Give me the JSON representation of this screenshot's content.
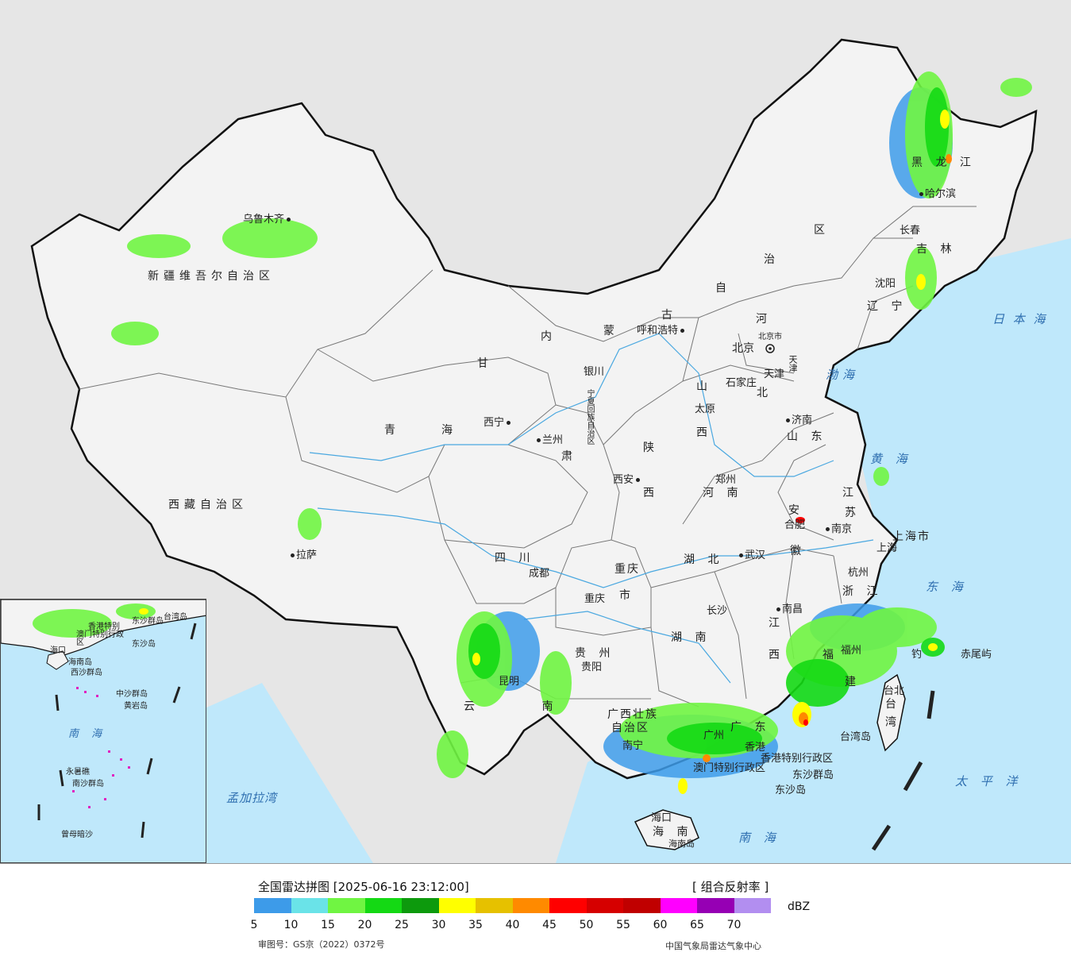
{
  "map": {
    "provinces": [
      {
        "key": "xinjiang",
        "text": "新疆维吾尔自治区"
      },
      {
        "key": "xizang",
        "text": "西藏自治区"
      },
      {
        "key": "qinghai1",
        "text": "青"
      },
      {
        "key": "qinghai2",
        "text": "海"
      },
      {
        "key": "gansu",
        "text": "甘"
      },
      {
        "key": "nmg1",
        "text": "内"
      },
      {
        "key": "nmg2",
        "text": "蒙"
      },
      {
        "key": "nmg3",
        "text": "古"
      },
      {
        "key": "nmg4",
        "text": "自"
      },
      {
        "key": "nmg5",
        "text": "治"
      },
      {
        "key": "nmg6",
        "text": "区"
      },
      {
        "key": "heilongjiang",
        "text": "黑 龙 江"
      },
      {
        "key": "jilin",
        "text": "吉 林"
      },
      {
        "key": "liaoning",
        "text": "辽 宁"
      },
      {
        "key": "hebei1",
        "text": "河"
      },
      {
        "key": "hebei2",
        "text": "北"
      },
      {
        "key": "shanxi1",
        "text": "山"
      },
      {
        "key": "shanxi2",
        "text": "西"
      },
      {
        "key": "shandong",
        "text": "山 东"
      },
      {
        "key": "shaanxi1",
        "text": "陕"
      },
      {
        "key": "shaanxi2",
        "text": "西"
      },
      {
        "key": "henan",
        "text": "河 南"
      },
      {
        "key": "jiangsu1",
        "text": "江"
      },
      {
        "key": "jiangsu2",
        "text": "苏"
      },
      {
        "key": "anhui1",
        "text": "安"
      },
      {
        "key": "anhui2",
        "text": "徽"
      },
      {
        "key": "shanghai",
        "text": "上海市"
      },
      {
        "key": "zhejiang",
        "text": "浙 江"
      },
      {
        "key": "hubei",
        "text": "湖 北"
      },
      {
        "key": "hunan",
        "text": "湖 南"
      },
      {
        "key": "jiangxi1",
        "text": "江"
      },
      {
        "key": "jiangxi2",
        "text": "西"
      },
      {
        "key": "fujian1",
        "text": "福"
      },
      {
        "key": "fujian2",
        "text": "建"
      },
      {
        "key": "sichuan",
        "text": "四 川"
      },
      {
        "key": "chongqing1",
        "text": "重庆"
      },
      {
        "key": "chongqing2",
        "text": "市"
      },
      {
        "key": "guizhou",
        "text": "贵 州"
      },
      {
        "key": "yunnan",
        "text": "云 南"
      },
      {
        "key": "guangxi1",
        "text": "广西壮族"
      },
      {
        "key": "guangxi2",
        "text": "自治区"
      },
      {
        "key": "guangdong",
        "text": "广 东"
      },
      {
        "key": "hainan",
        "text": "海 南"
      },
      {
        "key": "taiwan1",
        "text": "台"
      },
      {
        "key": "taiwan2",
        "text": "湾"
      },
      {
        "key": "ningxia",
        "text": "宁夏回族自治区"
      },
      {
        "key": "hongkong",
        "text": "香港特别行政区"
      },
      {
        "key": "macau",
        "text": "澳门特别行政区"
      },
      {
        "key": "tianjin",
        "text": "天津"
      },
      {
        "key": "beijingcity",
        "text": "北京市"
      },
      {
        "key": "gansu2",
        "text": "肃"
      }
    ],
    "cities": [
      {
        "key": "urumqi",
        "text": "乌鲁木齐"
      },
      {
        "key": "lhasa",
        "text": "拉萨"
      },
      {
        "key": "xining",
        "text": "西宁"
      },
      {
        "key": "lanzhou",
        "text": "兰州"
      },
      {
        "key": "yinchuan",
        "text": "银川"
      },
      {
        "key": "hohhot",
        "text": "呼和浩特"
      },
      {
        "key": "beijing",
        "text": "北京"
      },
      {
        "key": "tianjin",
        "text": "天津"
      },
      {
        "key": "shijiazhuang",
        "text": "石家庄"
      },
      {
        "key": "taiyuan",
        "text": "太原"
      },
      {
        "key": "jinan",
        "text": "济南"
      },
      {
        "key": "zhengzhou",
        "text": "郑州"
      },
      {
        "key": "xian",
        "text": "西安"
      },
      {
        "key": "hefei",
        "text": "合肥"
      },
      {
        "key": "nanjing",
        "text": "南京"
      },
      {
        "key": "shanghai",
        "text": "上海"
      },
      {
        "key": "hangzhou",
        "text": "杭州"
      },
      {
        "key": "wuhan",
        "text": "武汉"
      },
      {
        "key": "chengdu",
        "text": "成都"
      },
      {
        "key": "chongqing",
        "text": "重庆"
      },
      {
        "key": "changsha",
        "text": "长沙"
      },
      {
        "key": "nanchang",
        "text": "南昌"
      },
      {
        "key": "fuzhou",
        "text": "福州"
      },
      {
        "key": "guiyang",
        "text": "贵阳"
      },
      {
        "key": "kunming",
        "text": "昆明"
      },
      {
        "key": "nanning",
        "text": "南宁"
      },
      {
        "key": "guangzhou",
        "text": "广州"
      },
      {
        "key": "hongkong",
        "text": "香港"
      },
      {
        "key": "haikou",
        "text": "海口"
      },
      {
        "key": "taibei",
        "text": "台北"
      },
      {
        "key": "shenyang",
        "text": "沈阳"
      },
      {
        "key": "changchun",
        "text": "长春"
      },
      {
        "key": "harbin",
        "text": "哈尔滨"
      }
    ],
    "seas": [
      {
        "key": "bohai",
        "text": "渤海"
      },
      {
        "key": "huanghai",
        "text": "黄 海"
      },
      {
        "key": "donghai",
        "text": "东 海"
      },
      {
        "key": "nanhai",
        "text": "南 海"
      },
      {
        "key": "taipingyang",
        "text": "太 平 洋"
      },
      {
        "key": "ribenhai",
        "text": "日 本 海"
      },
      {
        "key": "mengjialawan",
        "text": "孟加拉湾"
      }
    ],
    "islands": [
      {
        "key": "chiweiyu",
        "text": "赤尾屿"
      },
      {
        "key": "diaoyu",
        "text": "钓"
      },
      {
        "key": "taiwandao",
        "text": "台湾岛"
      },
      {
        "key": "dongshaqundao",
        "text": "东沙群岛"
      },
      {
        "key": "dongshadao",
        "text": "东沙岛"
      },
      {
        "key": "hainandao",
        "text": "海南岛"
      }
    ],
    "inset": [
      {
        "key": "i_dongsha",
        "text": "东沙群岛"
      },
      {
        "key": "i_hk",
        "text": "香港特别"
      },
      {
        "key": "i_macau",
        "text": "澳门特别行政区"
      },
      {
        "key": "i_taiwan",
        "text": "台湾岛"
      },
      {
        "key": "i_dongshadao",
        "text": "东沙岛"
      },
      {
        "key": "i_haikou",
        "text": "海口"
      },
      {
        "key": "i_hainan",
        "text": "海南岛"
      },
      {
        "key": "i_xisha",
        "text": "西沙群岛"
      },
      {
        "key": "i_zhongsha",
        "text": "中沙群岛"
      },
      {
        "key": "i_huangyan",
        "text": "黄岩岛"
      },
      {
        "key": "i_nanhai",
        "text": "南 海"
      },
      {
        "key": "i_nansha",
        "text": "南沙群岛"
      },
      {
        "key": "i_yongshu",
        "text": "永暑礁"
      },
      {
        "key": "i_zengmu",
        "text": "曾母暗沙"
      }
    ]
  },
  "legend": {
    "title": "全国雷达拼图 [2025-06-16 23:12:00]",
    "product": "[ 组合反射率 ]",
    "unit": "dBZ",
    "ticks": [
      "5",
      "10",
      "15",
      "20",
      "25",
      "30",
      "35",
      "40",
      "45",
      "50",
      "55",
      "60",
      "65",
      "70"
    ],
    "colors": [
      "#3d9be9",
      "#6ae3e8",
      "#70f542",
      "#14d914",
      "#0d9a0d",
      "#ffff00",
      "#e6c100",
      "#ff8a00",
      "#ff0000",
      "#d60000",
      "#c00000",
      "#ff00ff",
      "#9600b4",
      "#b28ef0"
    ],
    "review_number": "审图号：GS京（2022）0372号",
    "source": "中国气象局雷达气象中心"
  },
  "colors": {
    "land": "#f3f3f3",
    "sea": "#bfe8fb",
    "outside": "#e6e6e6",
    "border": "#111111",
    "province_border": "#777777"
  }
}
